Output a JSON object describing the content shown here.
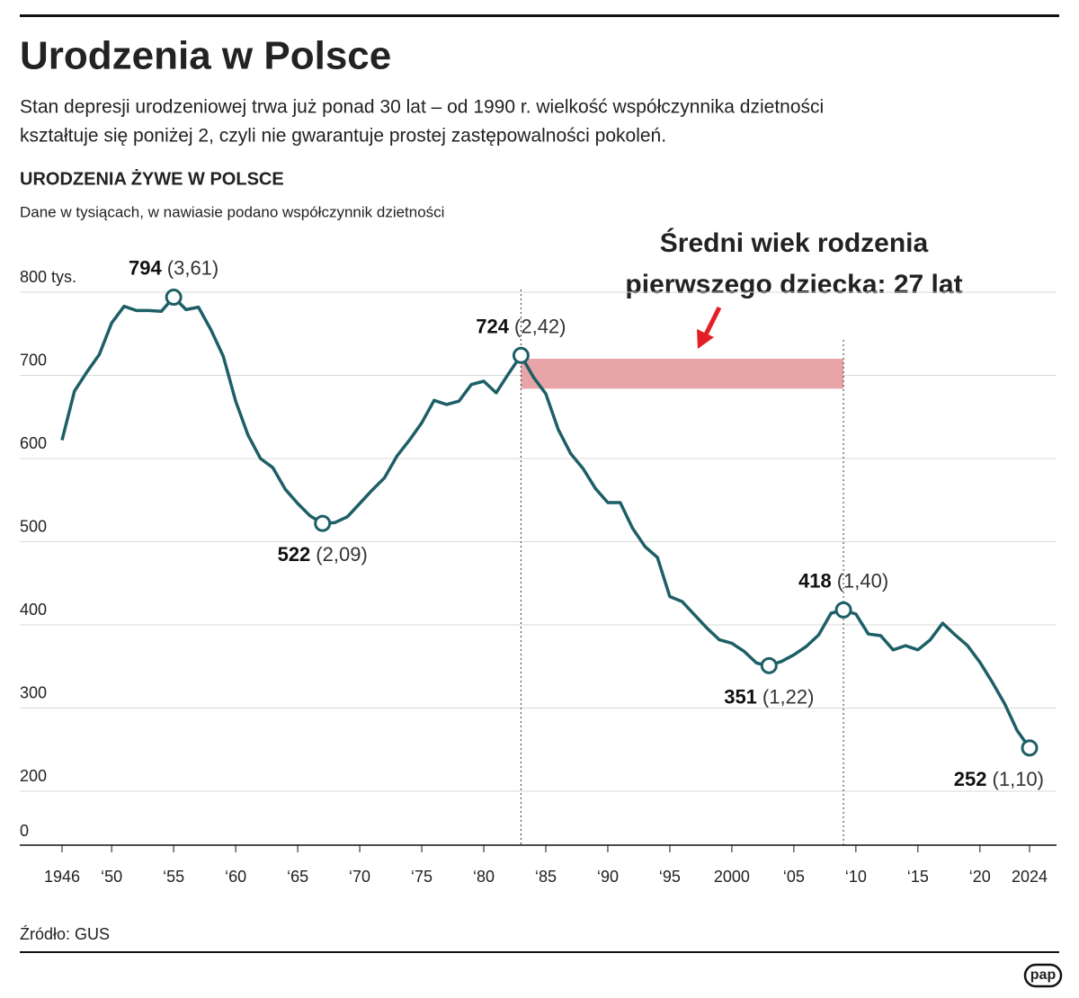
{
  "chart_data": {
    "type": "line",
    "title": "Urodzenia w Polsce",
    "subtitle": [
      "Stan depresji urodzeniowej trwa już ponad 30 lat – od 1990 r. wielkość współczynnika dzietności",
      "kształtuje się poniżej 2, czyli nie gwarantuje prostej zastępowalności pokoleń."
    ],
    "chart_title": "URODZENIA ŻYWE W POLSCE",
    "chart_subtitle": "Dane w tysiącach, w nawiasie podano współczynnik dzietności",
    "annotation": [
      "Średni wiek rodzenia",
      "pierwszego dziecka: 27 lat"
    ],
    "band_x": [
      1983,
      2009
    ],
    "band_y": [
      684,
      720
    ],
    "band_color": "#e8a4a6",
    "source": "Źródło: GUS",
    "logo": "pap",
    "color": "#1d5f66",
    "x": [
      1946,
      1947,
      1948,
      1949,
      1950,
      1951,
      1952,
      1953,
      1954,
      1955,
      1956,
      1957,
      1958,
      1959,
      1960,
      1961,
      1962,
      1963,
      1964,
      1965,
      1966,
      1967,
      1968,
      1969,
      1970,
      1971,
      1972,
      1973,
      1974,
      1975,
      1976,
      1977,
      1978,
      1979,
      1980,
      1981,
      1982,
      1983,
      1984,
      1985,
      1986,
      1987,
      1988,
      1989,
      1990,
      1991,
      1992,
      1993,
      1994,
      1995,
      1996,
      1997,
      1998,
      1999,
      2000,
      2001,
      2002,
      2003,
      2004,
      2005,
      2006,
      2007,
      2008,
      2009,
      2010,
      2011,
      2012,
      2013,
      2014,
      2015,
      2016,
      2017,
      2018,
      2019,
      2020,
      2021,
      2022,
      2023,
      2024
    ],
    "values": [
      622,
      681,
      704,
      725,
      763,
      783,
      778,
      778,
      777,
      794,
      779,
      782,
      755,
      723,
      669,
      628,
      600,
      589,
      563,
      546,
      531,
      522,
      523,
      530,
      546,
      562,
      577,
      603,
      622,
      643,
      670,
      665,
      669,
      689,
      693,
      679,
      702,
      724,
      698,
      678,
      635,
      606,
      588,
      564,
      547,
      547,
      516,
      494,
      481,
      434,
      428,
      412,
      396,
      382,
      378,
      368,
      354,
      351,
      356,
      364,
      374,
      388,
      414,
      418,
      413,
      389,
      387,
      370,
      375,
      370,
      382,
      402,
      388,
      375,
      355,
      331,
      305,
      273,
      252
    ],
    "fertility_labels": [
      null,
      null,
      null,
      null,
      null,
      null,
      null,
      null,
      null,
      "(3,61)",
      null,
      null,
      null,
      null,
      null,
      null,
      null,
      null,
      null,
      null,
      null,
      "(2,09)",
      null,
      null,
      null,
      null,
      null,
      null,
      null,
      null,
      null,
      null,
      null,
      null,
      null,
      null,
      null,
      "(2,42)",
      null,
      null,
      null,
      null,
      null,
      null,
      null,
      null,
      null,
      null,
      null,
      null,
      null,
      null,
      null,
      null,
      null,
      null,
      null,
      "(1,22)",
      null,
      null,
      null,
      null,
      null,
      "(1,40)",
      null,
      null,
      null,
      null,
      null,
      null,
      null,
      null,
      null,
      null,
      null,
      null,
      null,
      null,
      "(1,10)"
    ],
    "xlim": [
      1946,
      2024
    ],
    "xticks": [
      1946,
      {
        "value": 1950,
        "label": "‘50"
      },
      {
        "value": 1955,
        "label": "‘55"
      },
      {
        "value": 1960,
        "label": "‘60"
      },
      {
        "value": 1965,
        "label": "‘65"
      },
      {
        "value": 1970,
        "label": "‘70"
      },
      {
        "value": 1975,
        "label": "‘75"
      },
      {
        "value": 1980,
        "label": "‘80"
      },
      {
        "value": 1985,
        "label": "‘85"
      },
      {
        "value": 1990,
        "label": "‘90"
      },
      {
        "value": 1995,
        "label": "‘95"
      },
      2000,
      {
        "value": 2005,
        "label": "‘05"
      },
      {
        "value": 2010,
        "label": "‘10"
      },
      {
        "value": 2015,
        "label": "‘15"
      },
      {
        "value": 2020,
        "label": "‘20"
      },
      2024
    ],
    "ylim": [
      200,
      800
    ],
    "yticks": [
      200,
      300,
      400,
      500,
      600,
      700,
      {
        "value": 800,
        "label": "800 tys."
      }
    ],
    "y_break_tick": 0,
    "grid": true
  }
}
